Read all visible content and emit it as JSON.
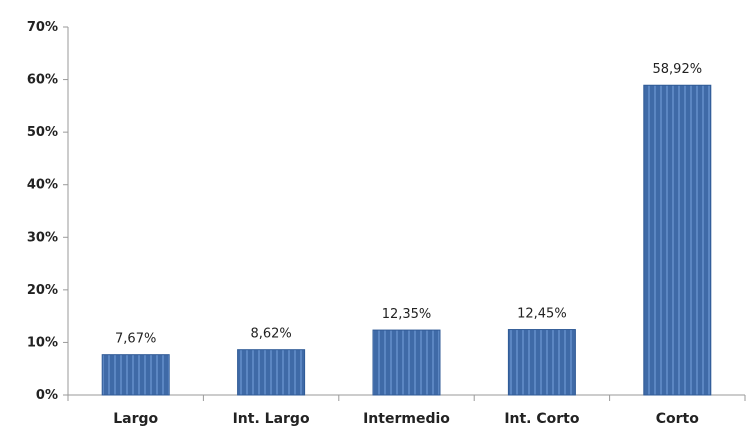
{
  "chart_data": {
    "type": "bar",
    "categories": [
      "Largo",
      "Int. Largo",
      "Intermedio",
      "Int. Corto",
      "Corto"
    ],
    "values": [
      7.67,
      8.62,
      12.35,
      12.45,
      58.92
    ],
    "data_labels": [
      "7,67%",
      "8,62%",
      "12,35%",
      "12,45%",
      "58,92%"
    ],
    "y_ticks": [
      {
        "value": 0,
        "label": "0%"
      },
      {
        "value": 10,
        "label": "10%"
      },
      {
        "value": 20,
        "label": "20%"
      },
      {
        "value": 30,
        "label": "30%"
      },
      {
        "value": 40,
        "label": "40%"
      },
      {
        "value": 50,
        "label": "50%"
      },
      {
        "value": 60,
        "label": "60%"
      },
      {
        "value": 70,
        "label": "70%"
      }
    ],
    "ylim": [
      0,
      70
    ],
    "title": "",
    "xlabel": "",
    "ylabel": "",
    "grid": false,
    "legend": "none",
    "bar_color": "#3f6aa7",
    "bar_stripe_color": "#5b86c2"
  }
}
